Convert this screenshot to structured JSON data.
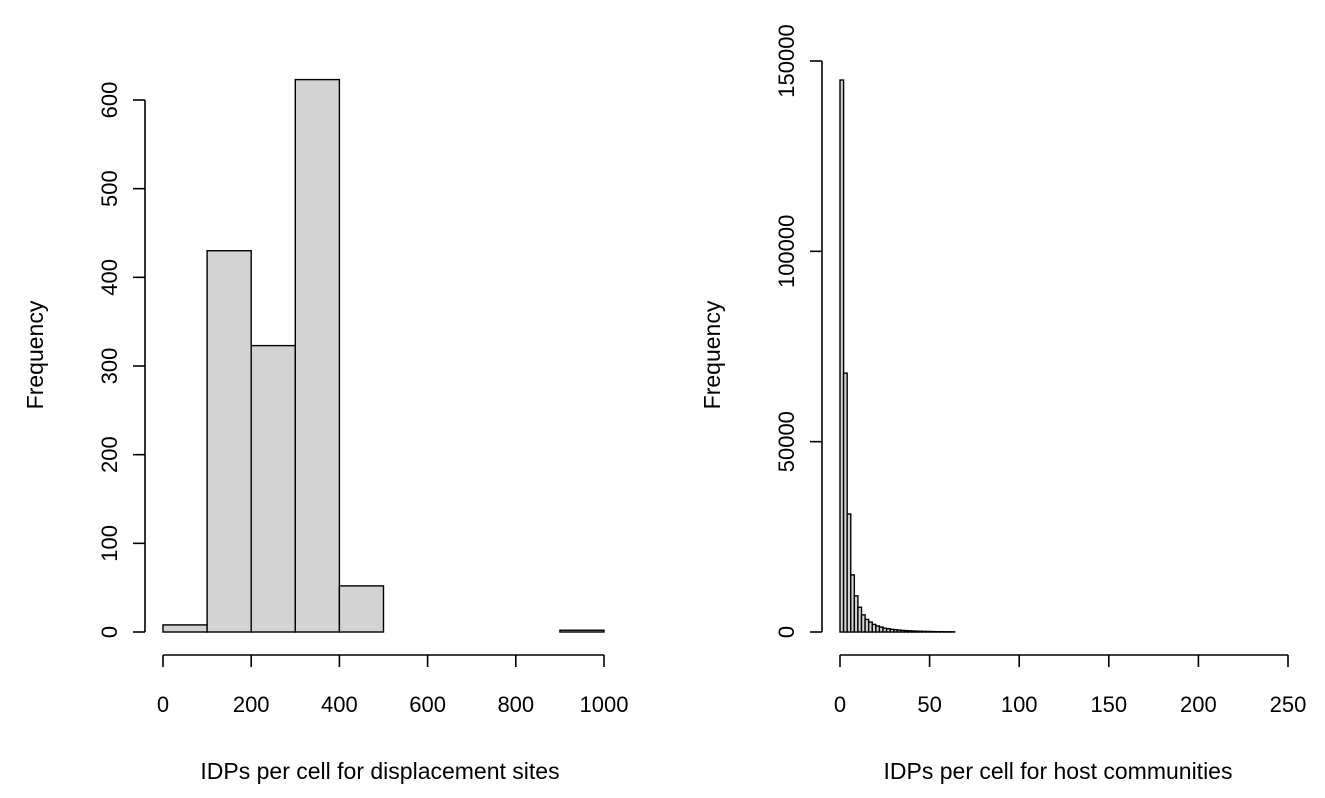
{
  "chart_data": [
    {
      "type": "bar",
      "subtype": "histogram",
      "xlabel": "IDPs per cell for displacement sites",
      "ylabel": "Frequency",
      "xlim": [
        0,
        1000
      ],
      "ylim": [
        0,
        600
      ],
      "x_ticks": [
        "0",
        "200",
        "400",
        "600",
        "800",
        "1000"
      ],
      "y_ticks": [
        "0",
        "100",
        "200",
        "300",
        "400",
        "500",
        "600"
      ],
      "bar_fill": "#d3d3d3",
      "bins": [
        {
          "x0": 0,
          "x1": 100,
          "count": 8
        },
        {
          "x0": 100,
          "x1": 200,
          "count": 430
        },
        {
          "x0": 200,
          "x1": 300,
          "count": 323
        },
        {
          "x0": 300,
          "x1": 400,
          "count": 623
        },
        {
          "x0": 400,
          "x1": 500,
          "count": 52
        },
        {
          "x0": 500,
          "x1": 600,
          "count": 0
        },
        {
          "x0": 600,
          "x1": 700,
          "count": 0
        },
        {
          "x0": 700,
          "x1": 800,
          "count": 0
        },
        {
          "x0": 800,
          "x1": 900,
          "count": 0
        },
        {
          "x0": 900,
          "x1": 1000,
          "count": 2
        }
      ]
    },
    {
      "type": "bar",
      "subtype": "histogram",
      "xlabel": "IDPs per cell for host communities",
      "ylabel": "Frequency",
      "xlim": [
        0,
        250
      ],
      "ylim": [
        0,
        150000
      ],
      "x_ticks": [
        "0",
        "50",
        "100",
        "150",
        "200",
        "250"
      ],
      "y_ticks": [
        "0",
        "50000",
        "100000",
        "150000"
      ],
      "bar_fill": "#d3d3d3",
      "bins": [
        {
          "x0": 0,
          "x1": 2,
          "count": 145000
        },
        {
          "x0": 2,
          "x1": 4,
          "count": 68000
        },
        {
          "x0": 4,
          "x1": 6,
          "count": 31000
        },
        {
          "x0": 6,
          "x1": 8,
          "count": 15000
        },
        {
          "x0": 8,
          "x1": 10,
          "count": 9500
        },
        {
          "x0": 10,
          "x1": 12,
          "count": 6500
        },
        {
          "x0": 12,
          "x1": 14,
          "count": 4500
        },
        {
          "x0": 14,
          "x1": 16,
          "count": 3300
        },
        {
          "x0": 16,
          "x1": 18,
          "count": 2600
        },
        {
          "x0": 18,
          "x1": 20,
          "count": 2000
        },
        {
          "x0": 20,
          "x1": 22,
          "count": 1600
        },
        {
          "x0": 22,
          "x1": 24,
          "count": 1300
        },
        {
          "x0": 24,
          "x1": 26,
          "count": 1000
        },
        {
          "x0": 26,
          "x1": 28,
          "count": 850
        },
        {
          "x0": 28,
          "x1": 30,
          "count": 700
        },
        {
          "x0": 30,
          "x1": 32,
          "count": 600
        },
        {
          "x0": 32,
          "x1": 34,
          "count": 500
        },
        {
          "x0": 34,
          "x1": 36,
          "count": 420
        },
        {
          "x0": 36,
          "x1": 38,
          "count": 360
        },
        {
          "x0": 38,
          "x1": 40,
          "count": 300
        },
        {
          "x0": 40,
          "x1": 42,
          "count": 260
        },
        {
          "x0": 42,
          "x1": 44,
          "count": 220
        },
        {
          "x0": 44,
          "x1": 46,
          "count": 190
        },
        {
          "x0": 46,
          "x1": 48,
          "count": 160
        },
        {
          "x0": 48,
          "x1": 50,
          "count": 140
        },
        {
          "x0": 50,
          "x1": 52,
          "count": 120
        },
        {
          "x0": 52,
          "x1": 54,
          "count": 100
        },
        {
          "x0": 54,
          "x1": 56,
          "count": 90
        },
        {
          "x0": 56,
          "x1": 58,
          "count": 80
        },
        {
          "x0": 58,
          "x1": 60,
          "count": 70
        },
        {
          "x0": 60,
          "x1": 62,
          "count": 60
        },
        {
          "x0": 62,
          "x1": 64,
          "count": 50
        },
        {
          "x0": 64,
          "x1": 246,
          "count": 0
        }
      ]
    }
  ]
}
